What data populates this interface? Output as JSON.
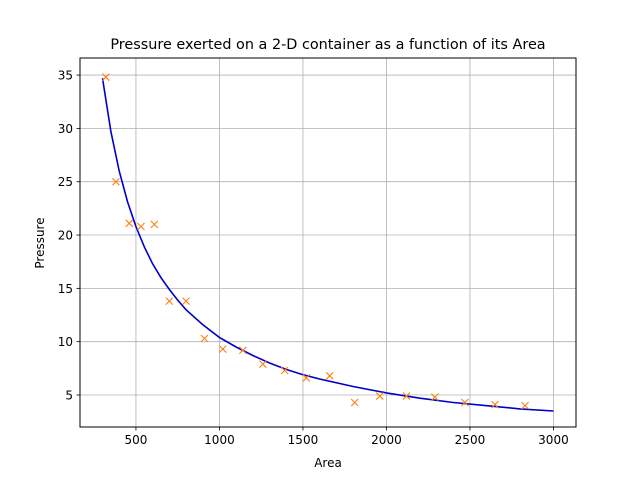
{
  "chart_data": {
    "type": "scatter",
    "title": "Pressure exerted on a 2-D container as a function of its Area",
    "xlabel": "Area",
    "ylabel": "Pressure",
    "xlim": [
      165,
      3135
    ],
    "ylim": [
      2.0,
      36.6
    ],
    "grid": true,
    "x_ticks": [
      500,
      1000,
      1500,
      2000,
      2500,
      3000
    ],
    "x_tick_labels": [
      "500",
      "1000",
      "1500",
      "2000",
      "2500",
      "3000"
    ],
    "y_ticks": [
      5,
      10,
      15,
      20,
      25,
      30,
      35
    ],
    "y_tick_labels": [
      "5",
      "10",
      "15",
      "20",
      "25",
      "30",
      "35"
    ],
    "colors": {
      "fit": "#0000cc",
      "points": "#ff7f0e",
      "grid": "#b0b0b0"
    },
    "series": [
      {
        "kind": "points",
        "marker": "x",
        "x": [
          320,
          380,
          460,
          530,
          610,
          700,
          800,
          910,
          1020,
          1140,
          1260,
          1390,
          1520,
          1660,
          1810,
          1960,
          2120,
          2290,
          2470,
          2650,
          2830
        ],
        "y": [
          34.8,
          25.0,
          21.1,
          20.8,
          21.0,
          13.8,
          13.8,
          10.3,
          9.3,
          9.2,
          7.9,
          7.3,
          6.6,
          6.8,
          4.3,
          4.9,
          4.9,
          4.8,
          4.3,
          4.1,
          4.0
        ]
      },
      {
        "kind": "fit",
        "x": [
          300,
          350,
          400,
          450,
          500,
          550,
          600,
          650,
          700,
          750,
          800,
          900,
          1000,
          1100,
          1200,
          1300,
          1400,
          1500,
          1600,
          1800,
          2000,
          2200,
          2400,
          2600,
          2800,
          3000
        ],
        "y": [
          34.7,
          29.7,
          26.0,
          23.1,
          20.8,
          18.9,
          17.3,
          16.0,
          14.9,
          13.9,
          13.0,
          11.6,
          10.4,
          9.5,
          8.7,
          8.0,
          7.4,
          6.9,
          6.5,
          5.8,
          5.2,
          4.7,
          4.3,
          4.0,
          3.7,
          3.5
        ]
      }
    ]
  }
}
